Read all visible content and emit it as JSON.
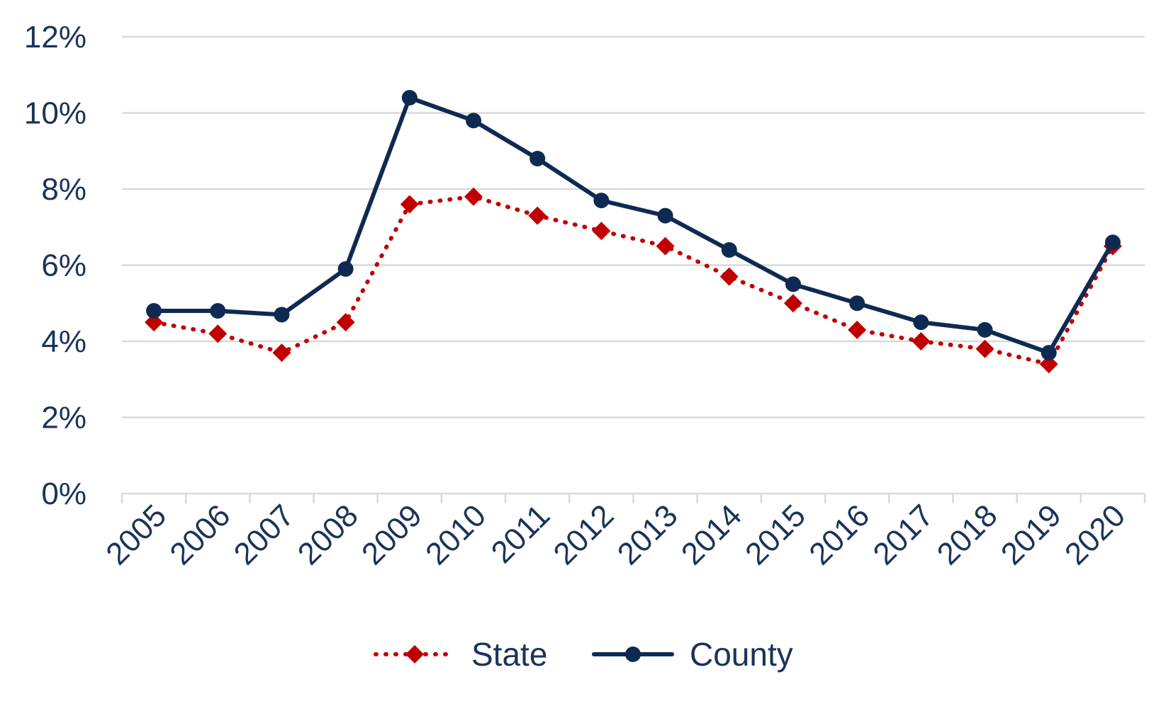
{
  "chart_data": {
    "type": "line",
    "title": "",
    "xlabel": "",
    "ylabel": "",
    "categories": [
      "2005",
      "2006",
      "2007",
      "2008",
      "2009",
      "2010",
      "2011",
      "2012",
      "2013",
      "2014",
      "2015",
      "2016",
      "2017",
      "2018",
      "2019",
      "2020"
    ],
    "ylim": [
      0,
      12
    ],
    "yticks": [
      0,
      2,
      4,
      6,
      8,
      10,
      12
    ],
    "ytick_labels": [
      "0%",
      "2%",
      "4%",
      "6%",
      "8%",
      "10%",
      "12%"
    ],
    "grid": "horizontal",
    "legend_position": "bottom",
    "series": [
      {
        "name": "State",
        "color": "#c00000",
        "line_style": "dotted",
        "marker": "diamond",
        "values": [
          4.5,
          4.2,
          3.7,
          4.5,
          7.6,
          7.8,
          7.3,
          6.9,
          6.5,
          5.7,
          5.0,
          4.3,
          4.0,
          3.8,
          3.4,
          6.5
        ]
      },
      {
        "name": "County",
        "color": "#0f2a52",
        "line_style": "solid",
        "marker": "circle",
        "values": [
          4.8,
          4.8,
          4.7,
          5.9,
          10.4,
          9.8,
          8.8,
          7.7,
          7.3,
          6.4,
          5.5,
          5.0,
          4.5,
          4.3,
          3.7,
          6.6
        ]
      }
    ]
  }
}
